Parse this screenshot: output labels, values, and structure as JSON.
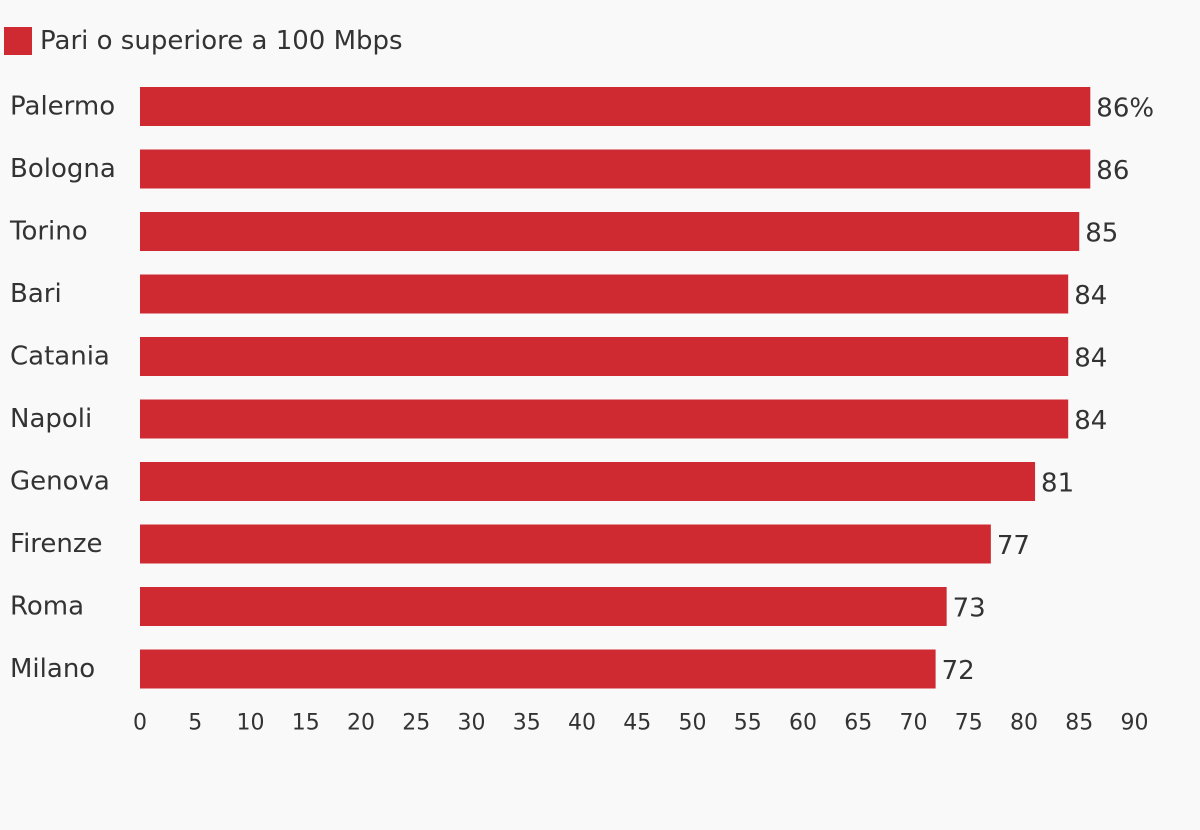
{
  "chart_data": {
    "type": "bar",
    "orientation": "horizontal",
    "categories": [
      "Palermo",
      "Bologna",
      "Torino",
      "Bari",
      "Catania",
      "Napoli",
      "Genova",
      "Firenze",
      "Roma",
      "Milano"
    ],
    "series": [
      {
        "name": "Pari o superiore a 100 Mbps",
        "values": [
          86,
          86,
          85,
          84,
          84,
          84,
          81,
          77,
          73,
          72
        ]
      }
    ],
    "data_labels": [
      "86%",
      "86",
      "85",
      "84",
      "84",
      "84",
      "81",
      "77",
      "73",
      "72"
    ],
    "xlim": [
      0,
      90
    ],
    "x_ticks": [
      0,
      5,
      10,
      15,
      20,
      25,
      30,
      35,
      40,
      45,
      50,
      55,
      60,
      65,
      70,
      75,
      80,
      85,
      90
    ],
    "grid": false,
    "legend_position": "top-left",
    "bar_color": "#cf2a31"
  }
}
